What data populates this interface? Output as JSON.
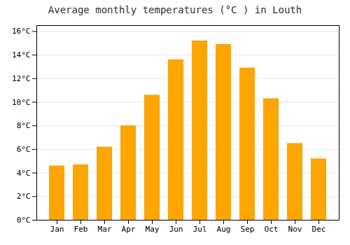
{
  "chart_data": {
    "type": "bar",
    "title": "Average monthly temperatures (°C ) in Louth",
    "categories": [
      "Jan",
      "Feb",
      "Mar",
      "Apr",
      "May",
      "Jun",
      "Jul",
      "Aug",
      "Sep",
      "Oct",
      "Nov",
      "Dec"
    ],
    "values": [
      4.6,
      4.7,
      6.2,
      8.0,
      10.6,
      13.6,
      15.2,
      14.9,
      12.9,
      10.3,
      6.5,
      5.2
    ],
    "color": "#FFA500",
    "ylim": [
      0,
      16.5
    ],
    "yticks": [
      {
        "value": 0,
        "label": "0°C"
      },
      {
        "value": 2,
        "label": "2°C"
      },
      {
        "value": 4,
        "label": "4°C"
      },
      {
        "value": 6,
        "label": "6°C"
      },
      {
        "value": 8,
        "label": "8°C"
      },
      {
        "value": 10,
        "label": "10°C"
      },
      {
        "value": 12,
        "label": "12°C"
      },
      {
        "value": 14,
        "label": "14°C"
      },
      {
        "value": 16,
        "label": "16°C"
      }
    ],
    "grid": true
  }
}
